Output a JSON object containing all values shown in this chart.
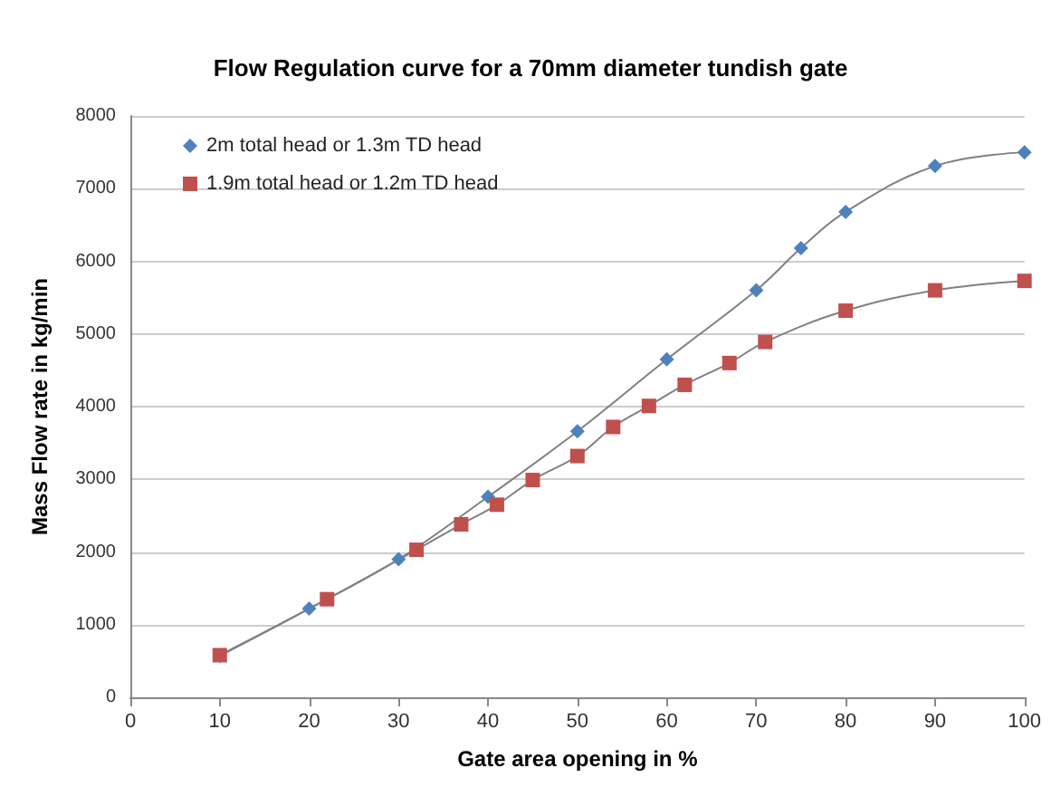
{
  "chart_data": {
    "type": "line",
    "title": "Flow Regulation curve for a 70mm diameter tundish gate",
    "xlabel": "Gate area opening in %",
    "ylabel": "Mass Flow rate in kg/min",
    "xlim": [
      0,
      100
    ],
    "xticks": [
      0,
      10,
      20,
      30,
      40,
      50,
      60,
      70,
      80,
      90,
      100
    ],
    "ylim": [
      0,
      8000
    ],
    "yticks": [
      0,
      1000,
      2000,
      3000,
      4000,
      5000,
      6000,
      7000,
      8000
    ],
    "grid": "y",
    "legend": "top left",
    "series": [
      {
        "name": "2m total head or 1.3m TD head",
        "color": "#4f81bd",
        "marker": "diamond",
        "x": [
          10,
          20,
          30,
          40,
          50,
          60,
          70,
          75,
          80,
          90,
          100
        ],
        "values": [
          570,
          1220,
          1900,
          2760,
          3660,
          4650,
          5600,
          6180,
          6680,
          7310,
          7500
        ]
      },
      {
        "name": "1.9m total head or 1.2m TD head",
        "color": "#c0504d",
        "marker": "square",
        "x": [
          10,
          22,
          32,
          37,
          41,
          45,
          50,
          54,
          58,
          62,
          67,
          71,
          80,
          90,
          100
        ],
        "values": [
          580,
          1350,
          2030,
          2380,
          2650,
          2990,
          3320,
          3720,
          4010,
          4300,
          4600,
          4890,
          5320,
          5600,
          5730
        ]
      }
    ]
  }
}
